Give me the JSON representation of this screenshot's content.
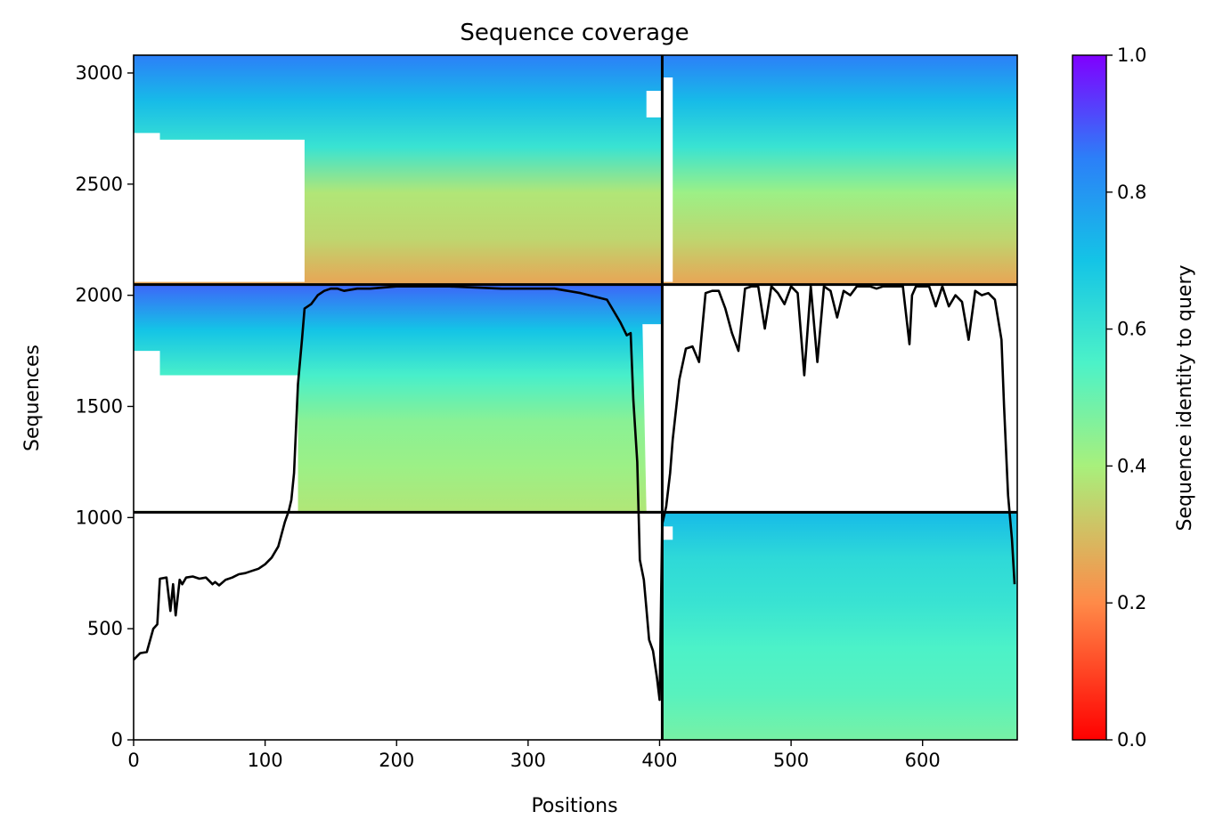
{
  "chart_data": {
    "type": "heatmap",
    "title": "Sequence coverage",
    "xlabel": "Positions",
    "ylabel": "Sequences",
    "xlim": [
      0,
      672
    ],
    "ylim": [
      0,
      3080
    ],
    "x_ticks": [
      0,
      100,
      200,
      300,
      400,
      500,
      600
    ],
    "y_ticks": [
      0,
      500,
      1000,
      1500,
      2000,
      2500,
      3000
    ],
    "colorbar": {
      "label": "Sequence identity to query",
      "range": [
        0.0,
        1.0
      ],
      "ticks": [
        "0.0",
        "0.2",
        "0.4",
        "0.6",
        "0.8",
        "1.0"
      ],
      "colormap": "rainbow_r"
    },
    "chain_boundaries": {
      "x": [
        402
      ],
      "y": [
        1024,
        2048
      ]
    },
    "blocks": [
      {
        "name": "chain A paired (top-left)",
        "x_range": [
          0,
          402
        ],
        "y_range": [
          2048,
          3080
        ],
        "identity_gradient_top_to_bottom": [
          0.85,
          0.72,
          0.6,
          0.38,
          0.35,
          0.25
        ]
      },
      {
        "name": "chain B paired (top-right)",
        "x_range": [
          402,
          672
        ],
        "y_range": [
          2048,
          3080
        ],
        "identity_gradient_top_to_bottom": [
          0.85,
          0.72,
          0.6,
          0.42,
          0.35,
          0.25
        ]
      },
      {
        "name": "chain A unpaired (middle-left)",
        "x_range": [
          0,
          402
        ],
        "y_range": [
          1024,
          2048
        ],
        "identity_gradient_top_to_bottom": [
          0.88,
          0.7,
          0.56,
          0.45,
          0.42,
          0.38
        ]
      },
      {
        "name": "chain B unpaired (bottom-right)",
        "x_range": [
          402,
          672
        ],
        "y_range": [
          0,
          1024
        ],
        "identity_gradient_top_to_bottom": [
          0.72,
          0.63,
          0.6,
          0.55,
          0.53,
          0.48
        ]
      }
    ],
    "coverage_line": {
      "name": "coverage",
      "color": "#000000",
      "x": [
        0,
        5,
        10,
        15,
        18,
        20,
        25,
        28,
        30,
        32,
        35,
        37,
        40,
        45,
        50,
        55,
        60,
        62,
        65,
        70,
        75,
        80,
        85,
        90,
        95,
        100,
        105,
        110,
        115,
        118,
        120,
        122,
        125,
        128,
        130,
        135,
        140,
        145,
        150,
        155,
        160,
        170,
        180,
        190,
        200,
        220,
        240,
        260,
        280,
        300,
        320,
        340,
        360,
        370,
        375,
        378,
        380,
        383,
        385,
        388,
        390,
        392,
        395,
        398,
        400,
        402,
        405,
        408,
        410,
        415,
        420,
        425,
        430,
        435,
        440,
        445,
        450,
        455,
        460,
        465,
        470,
        475,
        480,
        485,
        490,
        495,
        500,
        505,
        510,
        515,
        520,
        525,
        530,
        535,
        540,
        545,
        550,
        555,
        560,
        565,
        570,
        575,
        580,
        585,
        590,
        592,
        595,
        600,
        605,
        610,
        615,
        620,
        625,
        630,
        635,
        640,
        645,
        650,
        655,
        660,
        662,
        665,
        668,
        670
      ],
      "y": [
        360,
        390,
        395,
        500,
        520,
        725,
        730,
        580,
        700,
        560,
        720,
        700,
        730,
        735,
        725,
        730,
        700,
        710,
        695,
        720,
        730,
        745,
        750,
        760,
        770,
        790,
        820,
        870,
        980,
        1030,
        1080,
        1200,
        1600,
        1800,
        1940,
        1960,
        2000,
        2020,
        2030,
        2030,
        2020,
        2030,
        2030,
        2035,
        2040,
        2040,
        2040,
        2035,
        2030,
        2030,
        2030,
        2010,
        1980,
        1880,
        1820,
        1830,
        1530,
        1250,
        810,
        720,
        590,
        450,
        400,
        280,
        180,
        970,
        1050,
        1200,
        1350,
        1620,
        1760,
        1770,
        1700,
        2010,
        2020,
        2020,
        1940,
        1830,
        1750,
        2030,
        2040,
        2040,
        1850,
        2040,
        2010,
        1960,
        2040,
        2010,
        1640,
        2040,
        1700,
        2040,
        2020,
        1900,
        2020,
        2000,
        2040,
        2040,
        2040,
        2030,
        2040,
        2040,
        2040,
        2040,
        1780,
        2000,
        2040,
        2040,
        2040,
        1950,
        2040,
        1950,
        2000,
        1970,
        1800,
        2020,
        2000,
        2010,
        1980,
        1800,
        1500,
        1100,
        900,
        700
      ]
    }
  }
}
